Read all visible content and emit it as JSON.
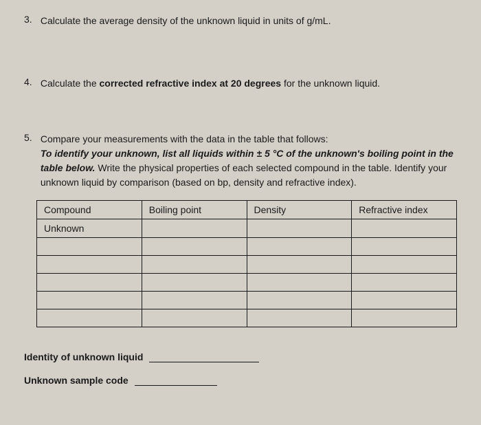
{
  "questions": {
    "q3": {
      "number": "3.",
      "text": "Calculate the average density of the unknown liquid in units of g/mL."
    },
    "q4": {
      "number": "4.",
      "text_before": "Calculate the ",
      "text_bold": "corrected refractive index at 20 degrees",
      "text_after": " for the unknown liquid."
    },
    "q5": {
      "number": "5.",
      "line1": "Compare your measurements with the data in the table that follows:",
      "line2_italic": "To identify your unknown, list all liquids within ± 5 °C of the unknown's boiling point in the table below.",
      "line2_after": " Write the physical properties of each selected compound in the table. Identify your unknown liquid by comparison (based on bp, density and refractive index)."
    }
  },
  "table": {
    "headers": {
      "compound": "Compound",
      "boiling_point": "Boiling point",
      "density": "Density",
      "refractive_index": "Refractive index"
    },
    "first_row": {
      "compound": "Unknown"
    }
  },
  "footer": {
    "identity_label": "Identity of unknown liquid",
    "sample_code_label": "Unknown sample code"
  }
}
